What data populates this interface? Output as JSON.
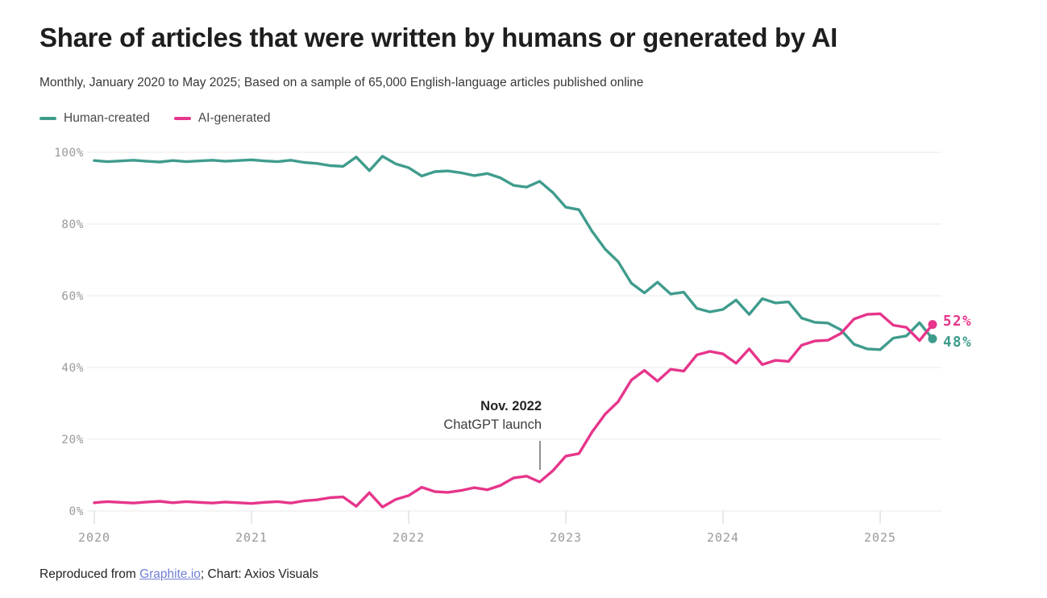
{
  "header": {
    "title": "Share of articles that were written by humans or generated by AI",
    "subtitle": "Monthly, January 2020 to May 2025; Based on a sample of 65,000 English-language articles published online"
  },
  "legend": {
    "items": [
      {
        "label": "Human-created",
        "color": "#3F9C8D"
      },
      {
        "label": "AI-generated",
        "color": "#E6358B"
      }
    ]
  },
  "chart_data": {
    "type": "line",
    "title": "Share of articles that were written by humans or generated by AI",
    "x_unit": "month",
    "x_start": "2020-01",
    "x_end": "2025-05",
    "x_tick_labels": [
      "2020",
      "2021",
      "2022",
      "2023",
      "2024",
      "2025"
    ],
    "y_tick_labels": [
      "0%",
      "20%",
      "40%",
      "60%",
      "80%",
      "100%"
    ],
    "ylim": [
      0,
      100
    ],
    "grid": "horizontal",
    "legend_position": "top-left",
    "series": [
      {
        "name": "Human-created",
        "color": "#3F9C8D",
        "end_label": "48%",
        "values": [
          97.7,
          97.4,
          97.6,
          97.8,
          97.5,
          97.3,
          97.7,
          97.4,
          97.6,
          97.8,
          97.5,
          97.7,
          97.9,
          97.6,
          97.4,
          97.8,
          97.2,
          96.9,
          96.3,
          96.1,
          98.7,
          94.9,
          98.9,
          96.8,
          95.7,
          93.4,
          94.6,
          94.8,
          94.3,
          93.5,
          94.1,
          92.9,
          90.8,
          90.3,
          91.9,
          88.8,
          84.7,
          84.0,
          78.0,
          73.0,
          69.5,
          63.5,
          60.8,
          63.8,
          60.5,
          61.0,
          56.5,
          55.5,
          56.2,
          58.8,
          54.8,
          59.2,
          58.0,
          58.3,
          53.8,
          52.6,
          52.4,
          50.5,
          46.5,
          45.2,
          45.0,
          48.2,
          48.8,
          52.5,
          48.0
        ]
      },
      {
        "name": "AI-generated",
        "color": "#E6358B",
        "end_label": "52%",
        "values": [
          2.3,
          2.6,
          2.4,
          2.2,
          2.5,
          2.7,
          2.3,
          2.6,
          2.4,
          2.2,
          2.5,
          2.3,
          2.1,
          2.4,
          2.6,
          2.2,
          2.8,
          3.1,
          3.7,
          3.9,
          1.3,
          5.1,
          1.1,
          3.2,
          4.3,
          6.6,
          5.4,
          5.2,
          5.7,
          6.5,
          5.9,
          7.1,
          9.2,
          9.7,
          8.1,
          11.2,
          15.3,
          16.0,
          22.0,
          27.0,
          30.5,
          36.5,
          39.2,
          36.2,
          39.5,
          39.0,
          43.5,
          44.5,
          43.8,
          41.2,
          45.2,
          40.8,
          42.0,
          41.7,
          46.2,
          47.4,
          47.6,
          49.5,
          53.5,
          54.8,
          55.0,
          51.8,
          51.2,
          47.5,
          52.0
        ]
      }
    ],
    "annotation": {
      "line1": "Nov. 2022",
      "line2": "ChatGPT launch",
      "month_index": 34
    }
  },
  "footer": {
    "prefix": "Reproduced from ",
    "link": "Graphite.io",
    "suffix": "; Chart: Axios Visuals"
  }
}
